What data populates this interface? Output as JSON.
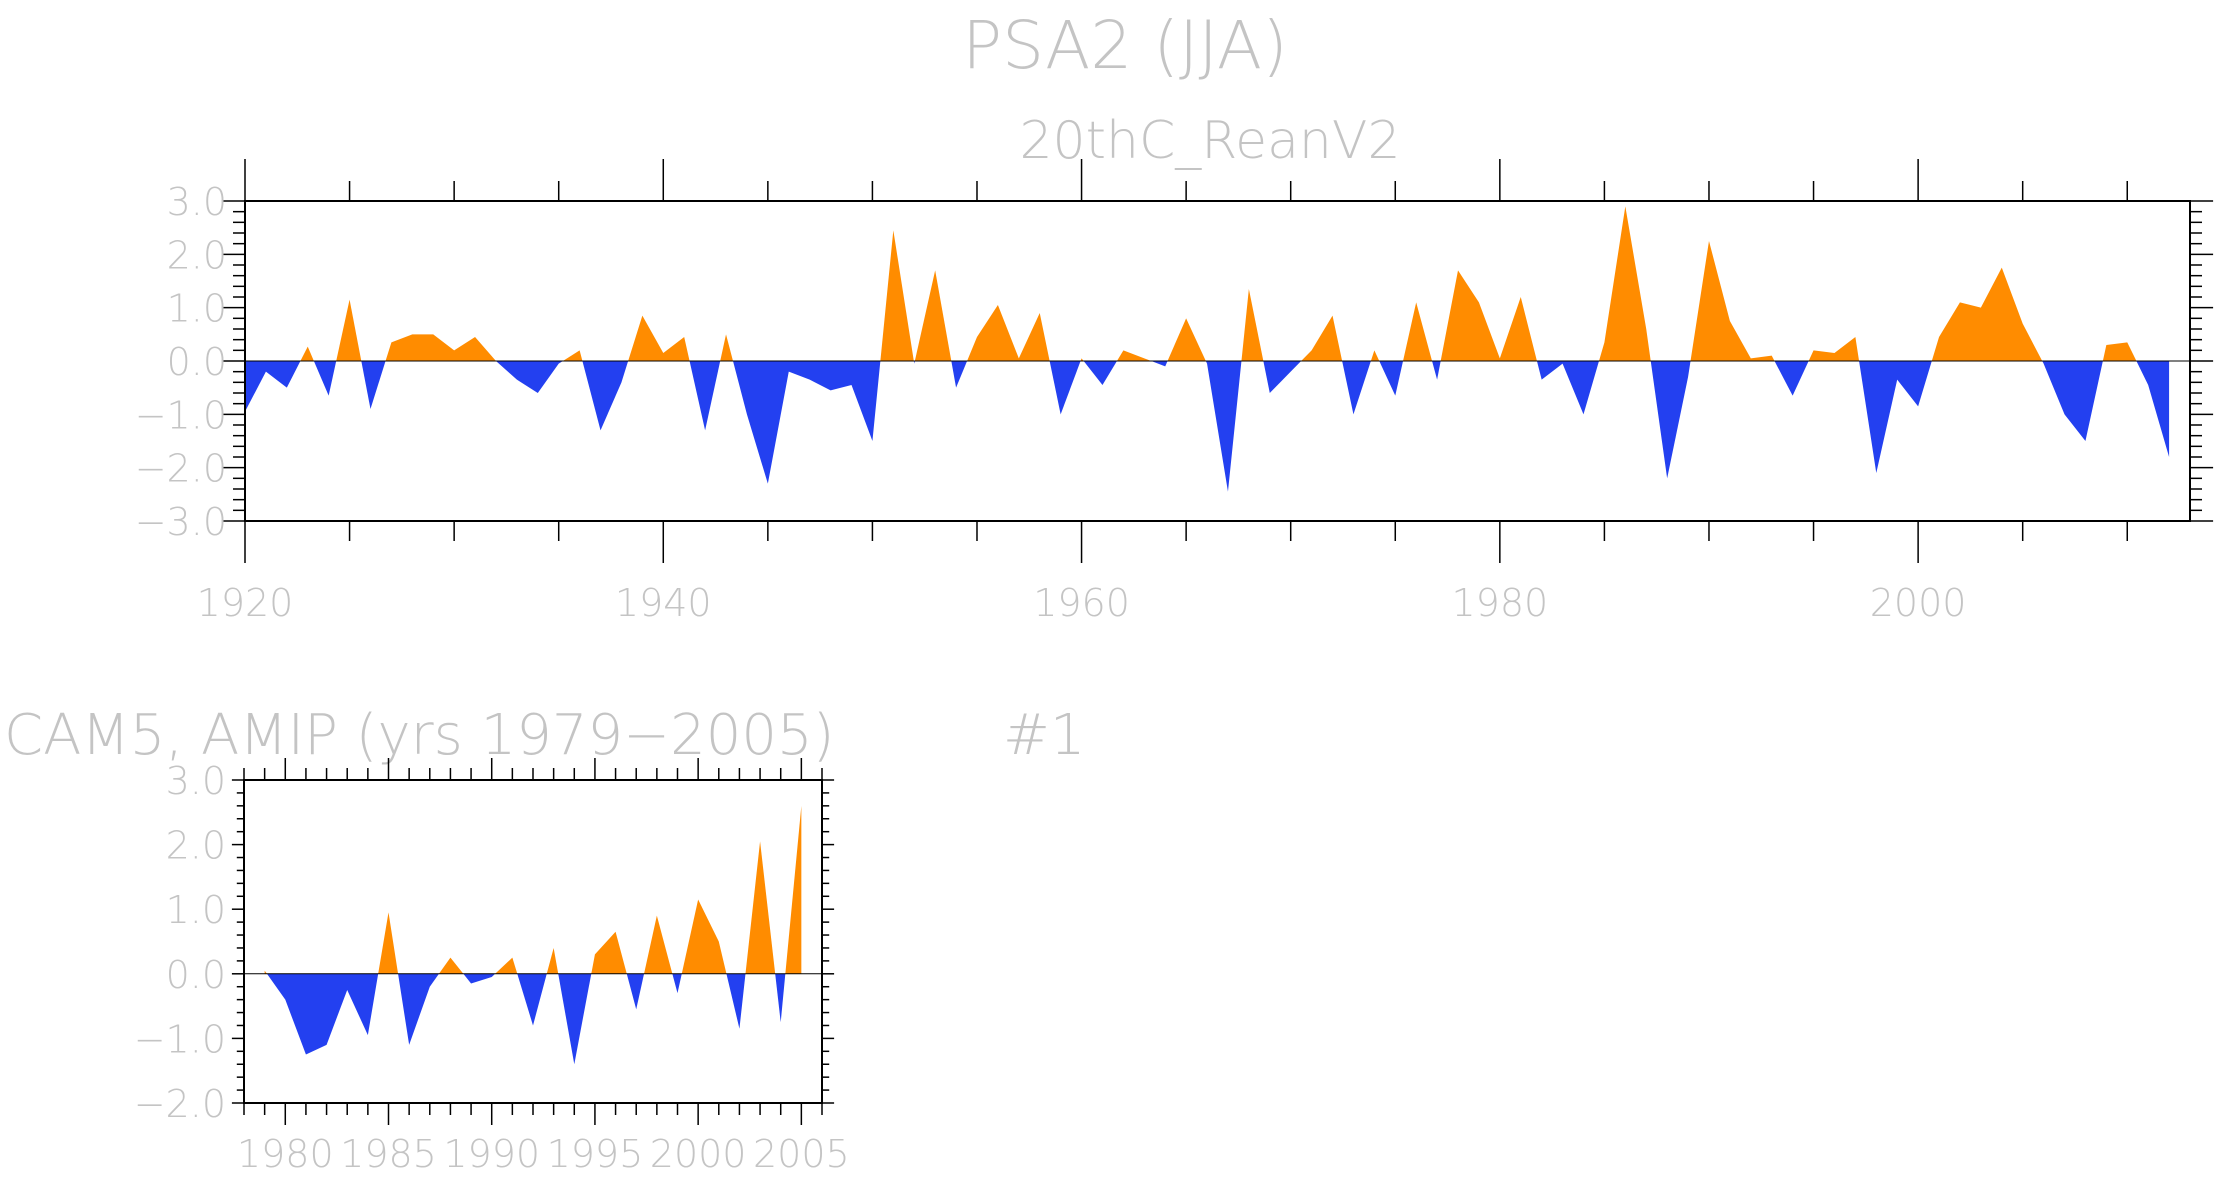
{
  "page": {
    "title": "PSA2 (JJA)",
    "panel_label": "#1"
  },
  "chart_data": [
    {
      "type": "area",
      "title": "20thC_ReanV2",
      "xlabel": "",
      "ylabel": "",
      "x": [
        1920,
        1921,
        1922,
        1923,
        1924,
        1925,
        1926,
        1927,
        1928,
        1929,
        1930,
        1931,
        1932,
        1933,
        1934,
        1935,
        1936,
        1937,
        1938,
        1939,
        1940,
        1941,
        1942,
        1943,
        1944,
        1945,
        1946,
        1947,
        1948,
        1949,
        1950,
        1951,
        1952,
        1953,
        1954,
        1955,
        1956,
        1957,
        1958,
        1959,
        1960,
        1961,
        1962,
        1963,
        1964,
        1965,
        1966,
        1967,
        1968,
        1969,
        1970,
        1971,
        1972,
        1973,
        1974,
        1975,
        1976,
        1977,
        1978,
        1979,
        1980,
        1981,
        1982,
        1983,
        1984,
        1985,
        1986,
        1987,
        1988,
        1989,
        1990,
        1991,
        1992,
        1993,
        1994,
        1995,
        1996,
        1997,
        1998,
        1999,
        2000,
        2001,
        2002,
        2003,
        2004,
        2005,
        2006,
        2007,
        2008,
        2009,
        2010,
        2011,
        2012
      ],
      "values": [
        -0.95,
        -0.2,
        -0.5,
        0.27,
        -0.65,
        1.15,
        -0.9,
        0.35,
        0.5,
        0.5,
        0.2,
        0.45,
        0.0,
        -0.35,
        -0.6,
        -0.05,
        0.2,
        -1.3,
        -0.4,
        0.85,
        0.15,
        0.45,
        -1.3,
        0.5,
        -1.0,
        -2.3,
        -0.2,
        -0.35,
        -0.55,
        -0.45,
        -1.5,
        2.45,
        -0.05,
        1.7,
        -0.5,
        0.45,
        1.05,
        0.05,
        0.9,
        -1.0,
        0.05,
        -0.45,
        0.2,
        0.05,
        -0.1,
        0.8,
        -0.05,
        -2.45,
        1.35,
        -0.6,
        -0.2,
        0.2,
        0.85,
        -1.0,
        0.2,
        -0.65,
        1.1,
        -0.35,
        1.7,
        1.1,
        0.05,
        1.2,
        -0.35,
        -0.05,
        -1.0,
        0.35,
        2.9,
        0.6,
        -2.2,
        -0.3,
        2.25,
        0.75,
        0.05,
        0.1,
        -0.65,
        0.2,
        0.15,
        0.45,
        -2.1,
        -0.35,
        -0.85,
        0.45,
        1.1,
        1.0,
        1.75,
        0.7,
        -0.05,
        -1.0,
        -1.5,
        0.3,
        0.35,
        -0.45,
        -1.8
      ],
      "xlim": [
        1920,
        2013
      ],
      "ylim": [
        -3,
        3
      ],
      "xticks": [
        "1920",
        "1940",
        "1960",
        "1980",
        "2000"
      ],
      "yticks": [
        "3.0",
        "2.0",
        "1.0",
        "0.0",
        "−1.0",
        "−2.0",
        "−3.0"
      ],
      "positive_color": "#ff8c00",
      "negative_color": "#2340f0",
      "grid": false
    },
    {
      "type": "area",
      "title": "CAM5, AMIP (yrs 1979−2005)",
      "xlabel": "",
      "ylabel": "",
      "x": [
        1979,
        1980,
        1981,
        1982,
        1983,
        1984,
        1985,
        1986,
        1987,
        1988,
        1989,
        1990,
        1991,
        1992,
        1993,
        1994,
        1995,
        1996,
        1997,
        1998,
        1999,
        2000,
        2001,
        2002,
        2003,
        2004,
        2005
      ],
      "values": [
        0.05,
        -0.4,
        -1.25,
        -1.1,
        -0.25,
        -0.95,
        0.95,
        -1.1,
        -0.2,
        0.25,
        -0.15,
        -0.05,
        0.25,
        -0.8,
        0.4,
        -1.4,
        0.3,
        0.65,
        -0.55,
        0.9,
        -0.3,
        1.15,
        0.5,
        -0.85,
        2.05,
        -0.75,
        2.6
      ],
      "xlim": [
        1978,
        2006
      ],
      "ylim": [
        -2,
        3
      ],
      "xticks": [
        "1980",
        "1985",
        "1990",
        "1995",
        "2000",
        "2005"
      ],
      "yticks": [
        "3.0",
        "2.0",
        "1.0",
        "0.0",
        "−1.0",
        "−2.0"
      ],
      "positive_color": "#ff8c00",
      "negative_color": "#2340f0",
      "grid": false
    }
  ]
}
